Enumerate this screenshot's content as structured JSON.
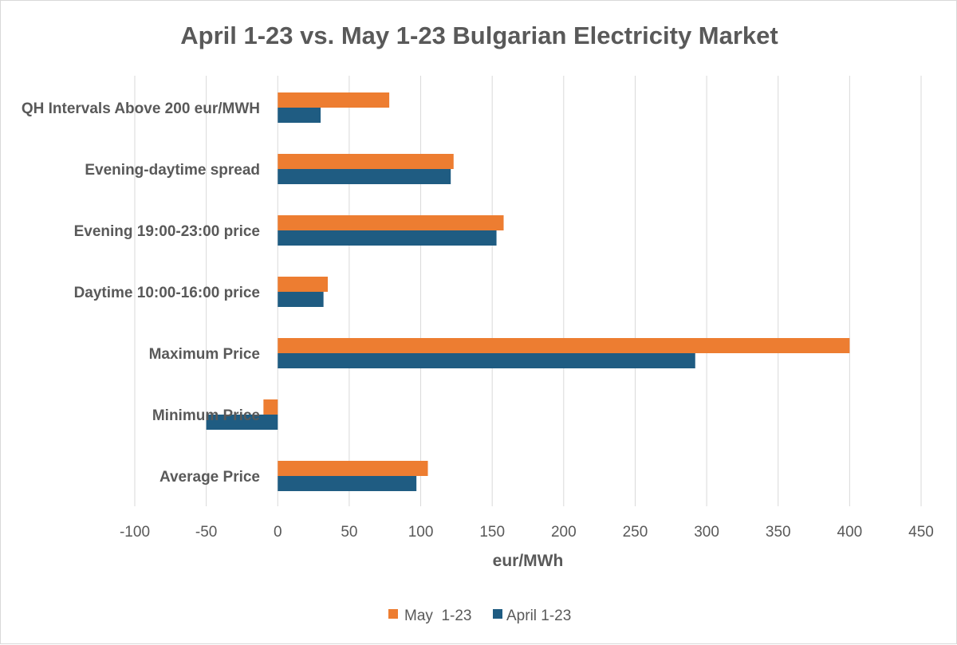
{
  "chart_data": {
    "type": "bar",
    "orientation": "horizontal",
    "title": "April 1-23 vs. May 1-23 Bulgarian Electricity Market",
    "xlabel": "eur/MWh",
    "ylabel": "",
    "xlim": [
      -100,
      450
    ],
    "x_ticks": [
      "-100",
      "-50",
      "0",
      "50",
      "100",
      "150",
      "200",
      "250",
      "300",
      "350",
      "400",
      "450"
    ],
    "grid": "vertical",
    "legend_position": "bottom",
    "categories": [
      "QH Intervals Above 200 eur/MWH",
      "Evening-daytime spread",
      "Evening 19:00-23:00 price",
      "Daytime 10:00-16:00 price",
      "Maximum Price",
      "Minimum Price",
      "Average Price"
    ],
    "series": [
      {
        "name": "May  1-23",
        "color": "#ED7D31",
        "values": [
          78,
          123,
          158,
          35,
          400,
          -10,
          105
        ]
      },
      {
        "name": "April 1-23",
        "color": "#1F5C82",
        "values": [
          30,
          121,
          153,
          32,
          292,
          -50,
          97
        ]
      }
    ]
  }
}
